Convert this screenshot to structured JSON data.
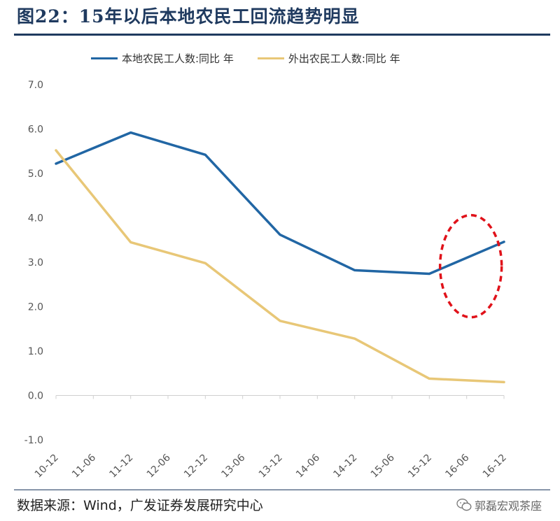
{
  "header": {
    "title": "图22：15年以后本地农民工回流趋势明显"
  },
  "footer": {
    "source": "数据来源：Wind，广发证券发展研究中心",
    "watermark": "郭磊宏观茶座",
    "watermark_icon": "wechat-icon"
  },
  "chart_data": {
    "type": "line",
    "categories": [
      "10-12",
      "11-06",
      "11-12",
      "12-06",
      "12-12",
      "13-06",
      "13-12",
      "14-06",
      "14-12",
      "15-06",
      "15-12",
      "16-06",
      "16-12"
    ],
    "series": [
      {
        "name": "本地农民工人数:同比 年",
        "color": "#2166a4",
        "points": [
          {
            "x": "10-12",
            "y": 5.22
          },
          {
            "x": "11-12",
            "y": 5.92
          },
          {
            "x": "12-12",
            "y": 5.42
          },
          {
            "x": "13-12",
            "y": 3.62
          },
          {
            "x": "14-12",
            "y": 2.82
          },
          {
            "x": "15-12",
            "y": 2.74
          },
          {
            "x": "16-12",
            "y": 3.46
          }
        ]
      },
      {
        "name": "外出农民工人数:同比 年",
        "color": "#e8c777",
        "points": [
          {
            "x": "10-12",
            "y": 5.52
          },
          {
            "x": "11-12",
            "y": 3.45
          },
          {
            "x": "12-12",
            "y": 2.98
          },
          {
            "x": "13-12",
            "y": 1.68
          },
          {
            "x": "14-12",
            "y": 1.28
          },
          {
            "x": "15-12",
            "y": 0.38
          },
          {
            "x": "16-12",
            "y": 0.3
          }
        ]
      }
    ],
    "ylim": [
      -1.0,
      7.0
    ],
    "yticks": [
      "-1.0",
      "0.0",
      "1.0",
      "2.0",
      "3.0",
      "4.0",
      "5.0",
      "6.0",
      "7.0"
    ],
    "grid": false,
    "legend_position": "top",
    "annotation": {
      "shape": "dashed-ellipse",
      "color": "#e0121a",
      "around_category": "16-06"
    }
  }
}
